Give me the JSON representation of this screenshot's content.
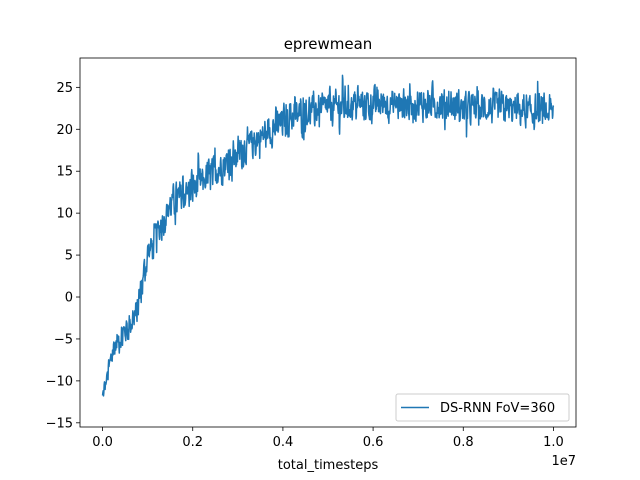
{
  "chart_data": {
    "type": "line",
    "title": "eprewmean",
    "xlabel": "total_timesteps",
    "ylabel": "",
    "x_offset_text": "1e7",
    "xlim": [
      -0.05,
      1.05
    ],
    "ylim": [
      -15.5,
      28.5
    ],
    "x_ticks": [
      0.0,
      0.2,
      0.4,
      0.6,
      0.8,
      1.0
    ],
    "x_tick_labels": [
      "0.0",
      "0.2",
      "0.4",
      "0.6",
      "0.8",
      "1.0"
    ],
    "y_ticks": [
      -15,
      -10,
      -5,
      0,
      5,
      10,
      15,
      20,
      25
    ],
    "y_tick_labels": [
      "−15",
      "−10",
      "−5",
      "0",
      "5",
      "10",
      "15",
      "20",
      "25"
    ],
    "grid": false,
    "legend_position": "lower-right",
    "series": [
      {
        "name": "DS-RNN FoV=360",
        "color": "#1f77b4",
        "x": [
          0.0,
          0.025,
          0.05,
          0.075,
          0.1,
          0.125,
          0.15,
          0.2,
          0.25,
          0.3,
          0.35,
          0.4,
          0.45,
          0.5,
          0.55,
          0.6,
          0.65,
          0.7,
          0.75,
          0.8,
          0.85,
          0.9,
          0.95,
          1.0
        ],
        "y": [
          -12,
          -6,
          -4,
          -2,
          5,
          8,
          11,
          13,
          15,
          17,
          19,
          21,
          22,
          22.5,
          23,
          23,
          23,
          23,
          23,
          22.5,
          22.5,
          22.5,
          22,
          22
        ],
        "noise": [
          1.5,
          2,
          2,
          2.5,
          2.5,
          2.5,
          2.5,
          2.5,
          2.5,
          2.5,
          2.5,
          2.5,
          2.5,
          2.5,
          2.5,
          2.5,
          2.5,
          2.5,
          2.5,
          2.5,
          2.5,
          2.5,
          2.5,
          2.5
        ]
      }
    ]
  }
}
